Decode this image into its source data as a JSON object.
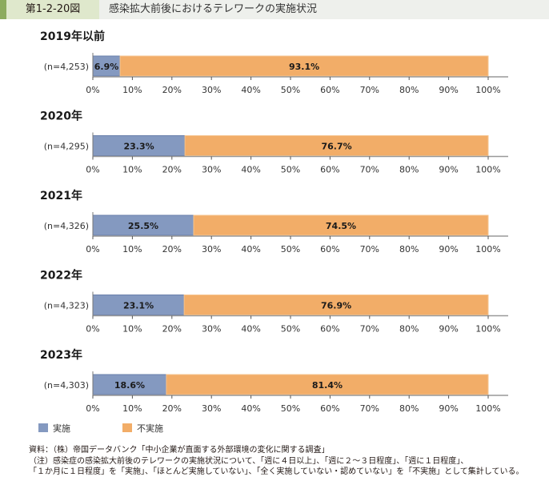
{
  "header": {
    "figure_number": "第1-2-20図",
    "title": "感染拡大前後におけるテレワークの実施状況"
  },
  "colors": {
    "implemented": "#8499c0",
    "not_implemented": "#f2ad68",
    "implemented_border": "#6a80ab",
    "not_implemented_border": "#f6c48f",
    "axis": "#999999"
  },
  "chart_data": {
    "type": "bar",
    "orientation": "horizontal",
    "stacked": true,
    "title": "感染拡大前後におけるテレワークの実施状況",
    "xlabel": "",
    "ylabel": "",
    "xlim": [
      0,
      100
    ],
    "x_ticks": [
      "0%",
      "10%",
      "20%",
      "30%",
      "40%",
      "50%",
      "60%",
      "70%",
      "80%",
      "90%",
      "100%"
    ],
    "grid": false,
    "legend_position": "bottom-left",
    "series_names": [
      "実施",
      "不実施"
    ],
    "panels": [
      {
        "title": "2019年以前",
        "n_label": "(n=4,253)",
        "values": [
          6.9,
          93.1
        ],
        "labels": [
          "6.9%",
          "93.1%"
        ]
      },
      {
        "title": "2020年",
        "n_label": "(n=4,295)",
        "values": [
          23.3,
          76.7
        ],
        "labels": [
          "23.3%",
          "76.7%"
        ]
      },
      {
        "title": "2021年",
        "n_label": "(n=4,326)",
        "values": [
          25.5,
          74.5
        ],
        "labels": [
          "25.5%",
          "74.5%"
        ]
      },
      {
        "title": "2022年",
        "n_label": "(n=4,323)",
        "values": [
          23.1,
          76.9
        ],
        "labels": [
          "23.1%",
          "76.9%"
        ]
      },
      {
        "title": "2023年",
        "n_label": "(n=4,303)",
        "values": [
          18.6,
          81.4
        ],
        "labels": [
          "18.6%",
          "81.4%"
        ]
      }
    ]
  },
  "legend": {
    "implemented": "実施",
    "not_implemented": "不実施"
  },
  "notes": {
    "source": "資料：（株）帝国データバンク「中小企業が直面する外部環境の変化に関する調査」",
    "note_line1": "（注）感染症の感染拡大前後のテレワークの実施状況について、「週に４日以上」、「週に２～３日程度」、「週に１日程度」、",
    "note_line2": "「１か月に１日程度」を「実施」、「ほとんど実施していない」、「全く実施していない・認めていない」を「不実施」として集計している。"
  }
}
